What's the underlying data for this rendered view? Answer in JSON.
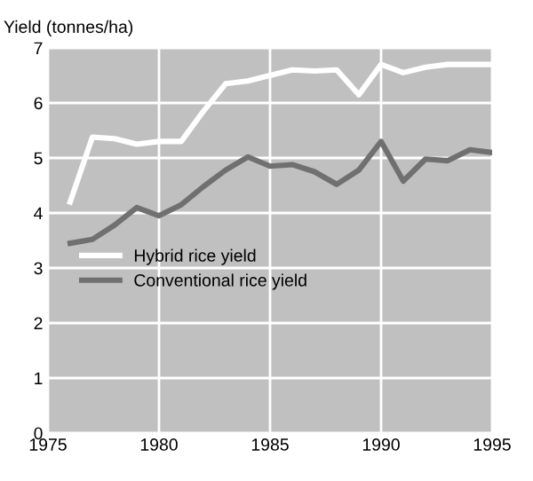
{
  "chart_data": {
    "type": "line",
    "ylabel": "Yield (tonnes/ha)",
    "x": [
      1976,
      1977,
      1978,
      1979,
      1980,
      1981,
      1982,
      1983,
      1984,
      1985,
      1986,
      1987,
      1988,
      1989,
      1990,
      1991,
      1992,
      1993,
      1994,
      1995
    ],
    "series": [
      {
        "name": "Hybrid rice yield",
        "color": "#ffffff",
        "values": [
          4.2,
          5.38,
          5.35,
          5.25,
          5.3,
          5.3,
          5.85,
          6.35,
          6.4,
          6.5,
          6.6,
          6.58,
          6.6,
          6.15,
          6.7,
          6.55,
          6.65,
          6.7,
          6.7,
          6.7
        ]
      },
      {
        "name": "Conventional rice yield",
        "color": "#707070",
        "values": [
          3.45,
          3.52,
          3.78,
          4.1,
          3.95,
          4.15,
          4.48,
          4.78,
          5.02,
          4.85,
          4.88,
          4.75,
          4.52,
          4.78,
          5.3,
          4.58,
          4.98,
          4.95,
          5.15,
          5.1
        ]
      }
    ],
    "xlim": [
      1975,
      1995
    ],
    "xticks": [
      1975,
      1980,
      1985,
      1990,
      1995
    ],
    "ylim": [
      0,
      7
    ],
    "yticks": [
      0,
      1,
      2,
      3,
      4,
      5,
      6,
      7
    ],
    "grid": true,
    "legend": "center",
    "marker": "none",
    "line_style": "solid"
  }
}
